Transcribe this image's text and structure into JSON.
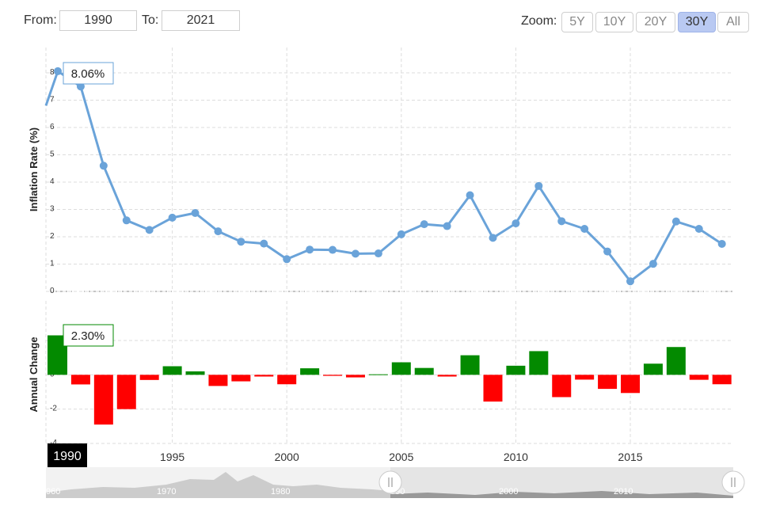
{
  "range": {
    "from_label": "From:",
    "from_value": "1990",
    "to_label": "To:",
    "to_value": "2021"
  },
  "zoom": {
    "label": "Zoom:",
    "buttons": [
      "5Y",
      "10Y",
      "20Y",
      "30Y",
      "All"
    ],
    "active": "30Y"
  },
  "colors": {
    "line": "#6aa3d9",
    "positive": "#038a00",
    "negative": "#ff0000",
    "grid": "#dddddd"
  },
  "chart_data": [
    {
      "type": "line",
      "ylabel": "Inflation Rate (%)",
      "ylim": [
        0,
        8
      ],
      "yticks": [
        "0",
        "1",
        "2",
        "3",
        "4",
        "5",
        "6",
        "7",
        "8"
      ],
      "x": [
        1990,
        1991,
        1992,
        1993,
        1994,
        1995,
        1996,
        1997,
        1998,
        1999,
        2000,
        2001,
        2002,
        2003,
        2004,
        2005,
        2006,
        2007,
        2008,
        2009,
        2010,
        2011,
        2012,
        2013,
        2014,
        2015,
        2016,
        2017,
        2018,
        2019
      ],
      "values": [
        8.06,
        7.5,
        4.6,
        2.6,
        2.25,
        2.7,
        2.87,
        2.2,
        1.82,
        1.75,
        1.18,
        1.53,
        1.52,
        1.38,
        1.39,
        2.09,
        2.46,
        2.39,
        3.52,
        1.96,
        2.49,
        3.86,
        2.57,
        2.29,
        1.46,
        0.37,
        1.01,
        2.56,
        2.29,
        1.74
      ],
      "tooltip": "8.06%"
    },
    {
      "type": "bar",
      "ylabel": "Annual Change",
      "ylim": [
        -4,
        2
      ],
      "yticks": [
        "-4",
        "-2",
        "0",
        "2"
      ],
      "x": [
        1990,
        1991,
        1992,
        1993,
        1994,
        1995,
        1996,
        1997,
        1998,
        1999,
        2000,
        2001,
        2002,
        2003,
        2004,
        2005,
        2006,
        2007,
        2008,
        2009,
        2010,
        2011,
        2012,
        2013,
        2014,
        2015,
        2016,
        2017,
        2018,
        2019
      ],
      "values": [
        2.3,
        -0.56,
        -2.9,
        -2.0,
        -0.3,
        0.5,
        0.2,
        -0.65,
        -0.38,
        -0.1,
        -0.55,
        0.38,
        -0.06,
        -0.15,
        0.03,
        0.73,
        0.4,
        -0.1,
        1.14,
        -1.56,
        0.53,
        1.38,
        -1.3,
        -0.28,
        -0.82,
        -1.06,
        0.65,
        1.62,
        -0.29,
        -0.55
      ],
      "tooltip": "2.30%"
    }
  ],
  "x_axis": {
    "ticks": [
      "1995",
      "2000",
      "2005",
      "2010",
      "2015"
    ],
    "range_start_badge": "1990"
  },
  "navigator": {
    "labels": [
      "960",
      "1970",
      "1980",
      "990",
      "2000",
      "2010"
    ]
  }
}
